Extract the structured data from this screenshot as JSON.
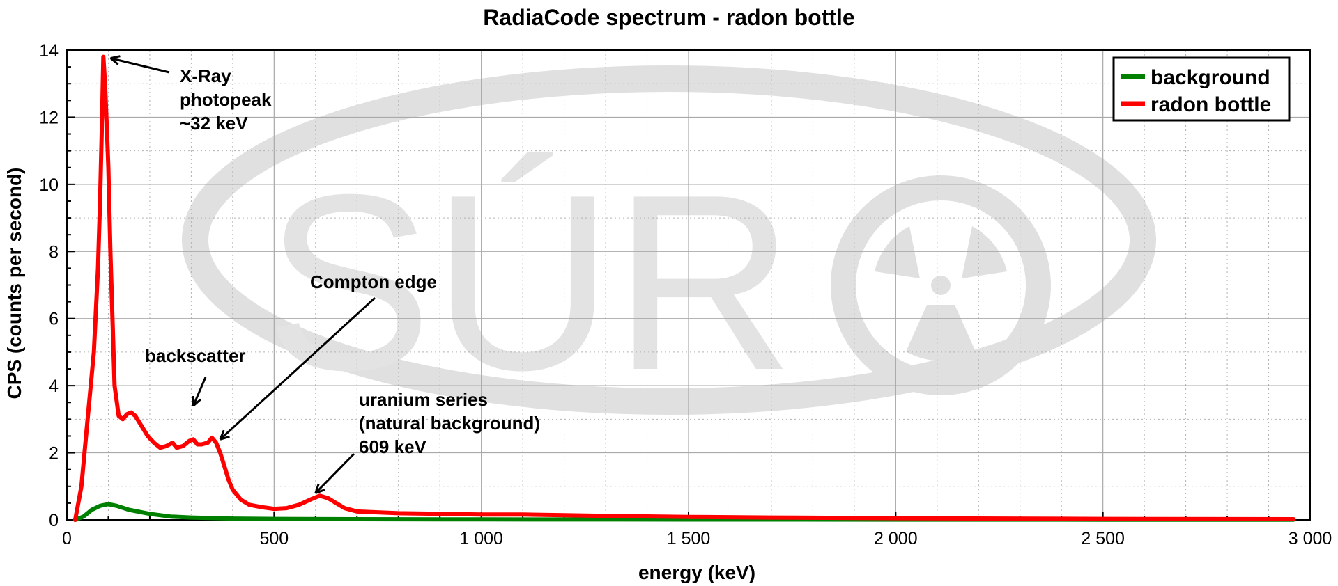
{
  "chart_data": {
    "type": "line",
    "title": "RadiaCode spectrum - radon bottle",
    "xlabel": "energy (keV)",
    "ylabel": "CPS (counts per second)",
    "xlim": [
      0,
      3000
    ],
    "ylim": [
      0,
      14
    ],
    "x_ticks": [
      0,
      500,
      1000,
      1500,
      2000,
      2500,
      3000
    ],
    "x_tick_labels": [
      "0",
      "500",
      "1 000",
      "1 500",
      "2 000",
      "2 500",
      "3 000"
    ],
    "y_ticks": [
      0,
      2,
      4,
      6,
      8,
      10,
      12,
      14
    ],
    "y_tick_labels": [
      "0",
      "2",
      "4",
      "6",
      "8",
      "10",
      "12",
      "14"
    ],
    "grid": true,
    "legend_position": "top-right",
    "series": [
      {
        "name": "background",
        "color": "#008000",
        "x": [
          20,
          40,
          60,
          80,
          100,
          120,
          150,
          200,
          250,
          300,
          400,
          500,
          700,
          1000,
          1500,
          2000,
          2500,
          2960
        ],
        "y": [
          0,
          0.1,
          0.3,
          0.42,
          0.47,
          0.42,
          0.3,
          0.18,
          0.1,
          0.07,
          0.04,
          0.03,
          0.02,
          0.015,
          0.01,
          0.008,
          0.006,
          0.005
        ]
      },
      {
        "name": "radon bottle",
        "color": "#ff0000",
        "x": [
          20,
          35,
          50,
          65,
          75,
          80,
          85,
          88,
          92,
          96,
          100,
          105,
          110,
          115,
          125,
          135,
          145,
          155,
          165,
          175,
          185,
          195,
          210,
          225,
          240,
          255,
          265,
          280,
          295,
          305,
          315,
          325,
          340,
          350,
          360,
          370,
          380,
          390,
          400,
          420,
          440,
          470,
          500,
          530,
          560,
          590,
          610,
          630,
          650,
          670,
          700,
          800,
          900,
          1000,
          1100,
          1200,
          1300,
          1500,
          1700,
          2000,
          2500,
          2960
        ],
        "y": [
          0,
          1.0,
          3.0,
          5.0,
          7.5,
          9.5,
          12.0,
          13.8,
          13.0,
          11.8,
          10.5,
          8.0,
          6.0,
          4.0,
          3.1,
          3.0,
          3.15,
          3.2,
          3.1,
          2.9,
          2.7,
          2.5,
          2.3,
          2.15,
          2.2,
          2.3,
          2.15,
          2.2,
          2.35,
          2.4,
          2.25,
          2.25,
          2.3,
          2.45,
          2.3,
          2.0,
          1.6,
          1.2,
          0.9,
          0.6,
          0.45,
          0.38,
          0.33,
          0.35,
          0.45,
          0.62,
          0.72,
          0.65,
          0.5,
          0.35,
          0.25,
          0.2,
          0.18,
          0.16,
          0.16,
          0.14,
          0.12,
          0.09,
          0.07,
          0.05,
          0.03,
          0.02
        ]
      }
    ],
    "annotations": [
      {
        "lines": [
          "X-Ray",
          "photopeak",
          "~32 keV"
        ],
        "arrow_x": 92,
        "arrow_y": 13.8
      },
      {
        "lines": [
          "backscatter"
        ],
        "arrow_x": 305,
        "arrow_y": 3.4
      },
      {
        "lines": [
          "Compton edge"
        ],
        "arrow_x": 370,
        "arrow_y": 2.4
      },
      {
        "lines": [
          "uranium series",
          "(natural background)",
          "609 keV"
        ],
        "arrow_x": 600,
        "arrow_y": 0.8
      }
    ]
  },
  "watermark": {
    "text": "SÚR",
    "icon": "radiation-trefoil-icon",
    "color": "#e0e0e0"
  }
}
